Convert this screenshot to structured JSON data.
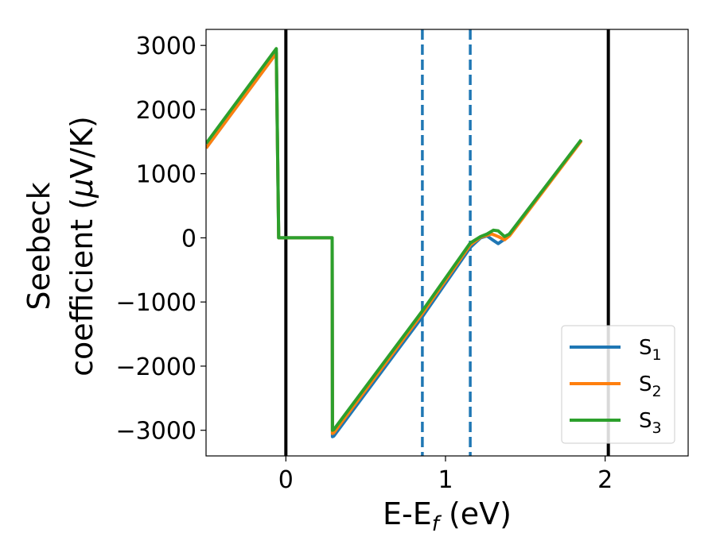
{
  "chart_data": {
    "type": "line",
    "xlabel": {
      "main": "E-E",
      "sub": "f",
      "unit": " (eV)"
    },
    "ylabel": {
      "line1": "Seebeck",
      "line2_pre": "coefficient  (",
      "mu": "μ",
      "line2_post": "V/K)"
    },
    "xlim": [
      -0.5,
      2.52
    ],
    "ylim": [
      -3400,
      3250
    ],
    "xticks": [
      0,
      1,
      2
    ],
    "xtick_labels": [
      "0",
      "1",
      "2"
    ],
    "yticks": [
      3000,
      2000,
      1000,
      0,
      -1000,
      -2000,
      -3000
    ],
    "ytick_labels": [
      "3000",
      "2000",
      "1000",
      "0",
      "−1000",
      "−2000",
      "−3000"
    ],
    "grid": false,
    "legend_position": "bottom-right",
    "vertical_lines": [
      {
        "x": 0,
        "style": "solid",
        "color": "#000000"
      },
      {
        "x": 0.855,
        "style": "dashed",
        "color": "#1f77b4"
      },
      {
        "x": 1.155,
        "style": "dashed",
        "color": "#1f77b4"
      },
      {
        "x": 2.02,
        "style": "solid",
        "color": "#000000"
      }
    ],
    "series": [
      {
        "name": "S",
        "sub": "1",
        "color": "#1f77b4",
        "x": [
          -0.5,
          -0.06,
          -0.045,
          0.29,
          0.292,
          0.3,
          0.855,
          1.155,
          1.22,
          1.26,
          1.3,
          1.33,
          1.37,
          1.4,
          1.85
        ],
        "y": [
          1400,
          2880,
          0,
          0,
          -3100,
          -3090,
          -1230,
          -150,
          0,
          30,
          -40,
          -90,
          -20,
          60,
          1520
        ]
      },
      {
        "name": "S",
        "sub": "2",
        "color": "#ff7f0e",
        "x": [
          -0.5,
          -0.06,
          -0.045,
          0.29,
          0.292,
          0.3,
          0.855,
          1.155,
          1.22,
          1.26,
          1.29,
          1.33,
          1.37,
          1.4,
          1.85
        ],
        "y": [
          1400,
          2880,
          0,
          0,
          -3050,
          -3040,
          -1180,
          -110,
          10,
          40,
          60,
          20,
          -30,
          30,
          1510
        ]
      },
      {
        "name": "S",
        "sub": "3",
        "color": "#2ca02c",
        "x": [
          -0.5,
          -0.06,
          -0.045,
          0.29,
          0.292,
          0.3,
          0.855,
          1.155,
          1.22,
          1.26,
          1.3,
          1.33,
          1.37,
          1.4,
          1.85
        ],
        "y": [
          1470,
          2950,
          0,
          0,
          -3000,
          -2990,
          -1140,
          -80,
          20,
          60,
          120,
          110,
          20,
          60,
          1530
        ]
      }
    ]
  }
}
